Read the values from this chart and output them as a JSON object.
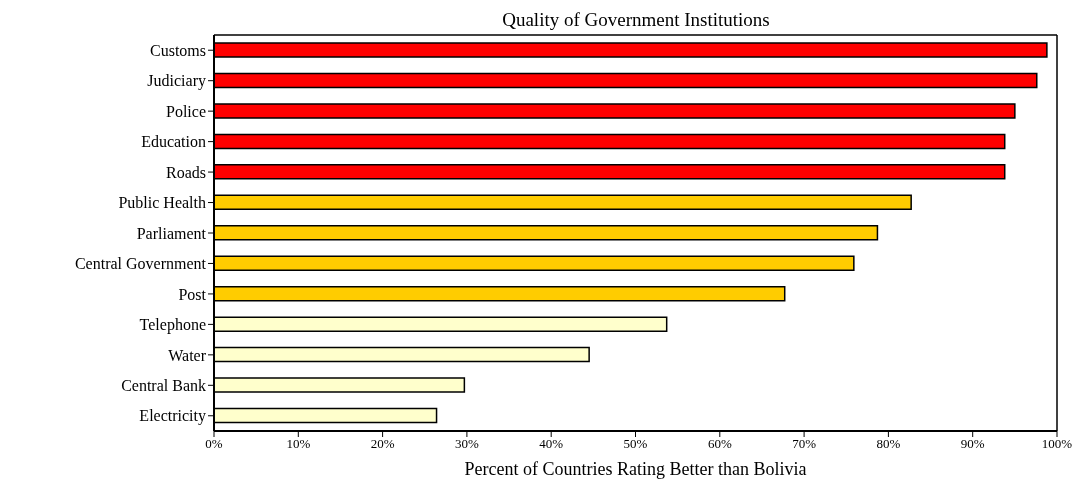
{
  "chart_data": {
    "type": "bar",
    "orientation": "horizontal",
    "title": "Quality of Government Institutions",
    "xlabel": "Percent of Countries Rating Better than Bolivia",
    "categories": [
      "Customs",
      "Judiciary",
      "Police",
      "Education",
      "Roads",
      "Public Health",
      "Parliament",
      "Central Government",
      "Post",
      "Telephone",
      "Water",
      "Central Bank",
      "Electricity"
    ],
    "values": [
      98.8,
      97.6,
      95.0,
      93.8,
      93.8,
      82.7,
      78.7,
      75.9,
      67.7,
      53.7,
      44.5,
      29.7,
      26.4
    ],
    "colors": [
      "#ff0000",
      "#ff0000",
      "#ff0000",
      "#ff0000",
      "#ff0000",
      "#ffcc00",
      "#ffcc00",
      "#ffcc00",
      "#ffcc00",
      "#ffffcc",
      "#ffffcc",
      "#ffffcc",
      "#ffffcc"
    ],
    "xlim": [
      0,
      100
    ],
    "xticks": [
      {
        "value": 0,
        "label": "0%"
      },
      {
        "value": 10,
        "label": "10%"
      },
      {
        "value": 20,
        "label": "20%"
      },
      {
        "value": 30,
        "label": "30%"
      },
      {
        "value": 40,
        "label": "40%"
      },
      {
        "value": 50,
        "label": "50%"
      },
      {
        "value": 60,
        "label": "60%"
      },
      {
        "value": 70,
        "label": "70%"
      },
      {
        "value": 80,
        "label": "80%"
      },
      {
        "value": 90,
        "label": "90%"
      },
      {
        "value": 100,
        "label": "100%"
      }
    ],
    "grid": false
  }
}
